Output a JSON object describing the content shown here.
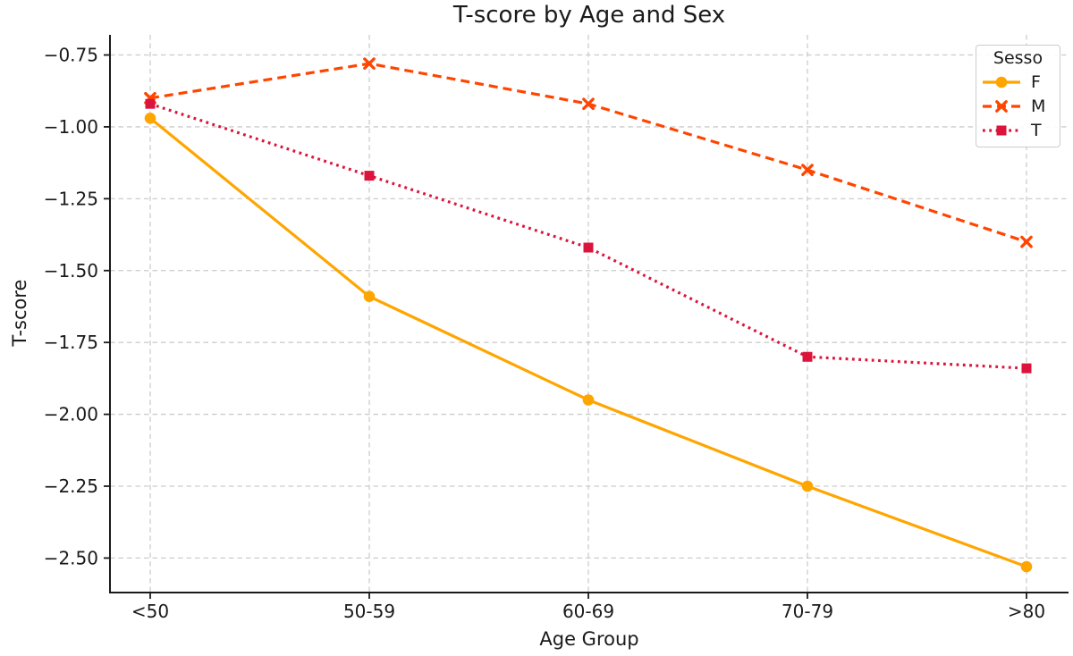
{
  "chart_data": {
    "type": "line",
    "title": "T-score by Age and Sex",
    "xlabel": "Age Group",
    "ylabel": "T-score",
    "categories": [
      "<50",
      "50-59",
      "60-69",
      "70-79",
      ">80"
    ],
    "series": [
      {
        "name": "F",
        "color": "#FFA500",
        "linestyle": "solid",
        "marker": "circle",
        "values": [
          -0.97,
          -1.59,
          -1.95,
          -2.25,
          -2.53
        ]
      },
      {
        "name": "M",
        "color": "#FF4500",
        "linestyle": "dashed",
        "marker": "x",
        "values": [
          -0.9,
          -0.78,
          -0.92,
          -1.15,
          -1.4
        ]
      },
      {
        "name": "T",
        "color": "#DC143C",
        "linestyle": "dotted",
        "marker": "square",
        "values": [
          -0.92,
          -1.17,
          -1.42,
          -1.8,
          -1.84
        ]
      }
    ],
    "legend": {
      "title": "Sesso",
      "position": "upper right"
    },
    "yticks": [
      -0.75,
      -1.0,
      -1.25,
      -1.5,
      -1.75,
      -2.0,
      -2.25,
      -2.5
    ],
    "ylim": [
      -2.62,
      -0.68
    ],
    "grid": {
      "on": true,
      "linestyle": "dashed",
      "color": "#cccccc"
    },
    "axis_color": "#1a1a1a"
  }
}
